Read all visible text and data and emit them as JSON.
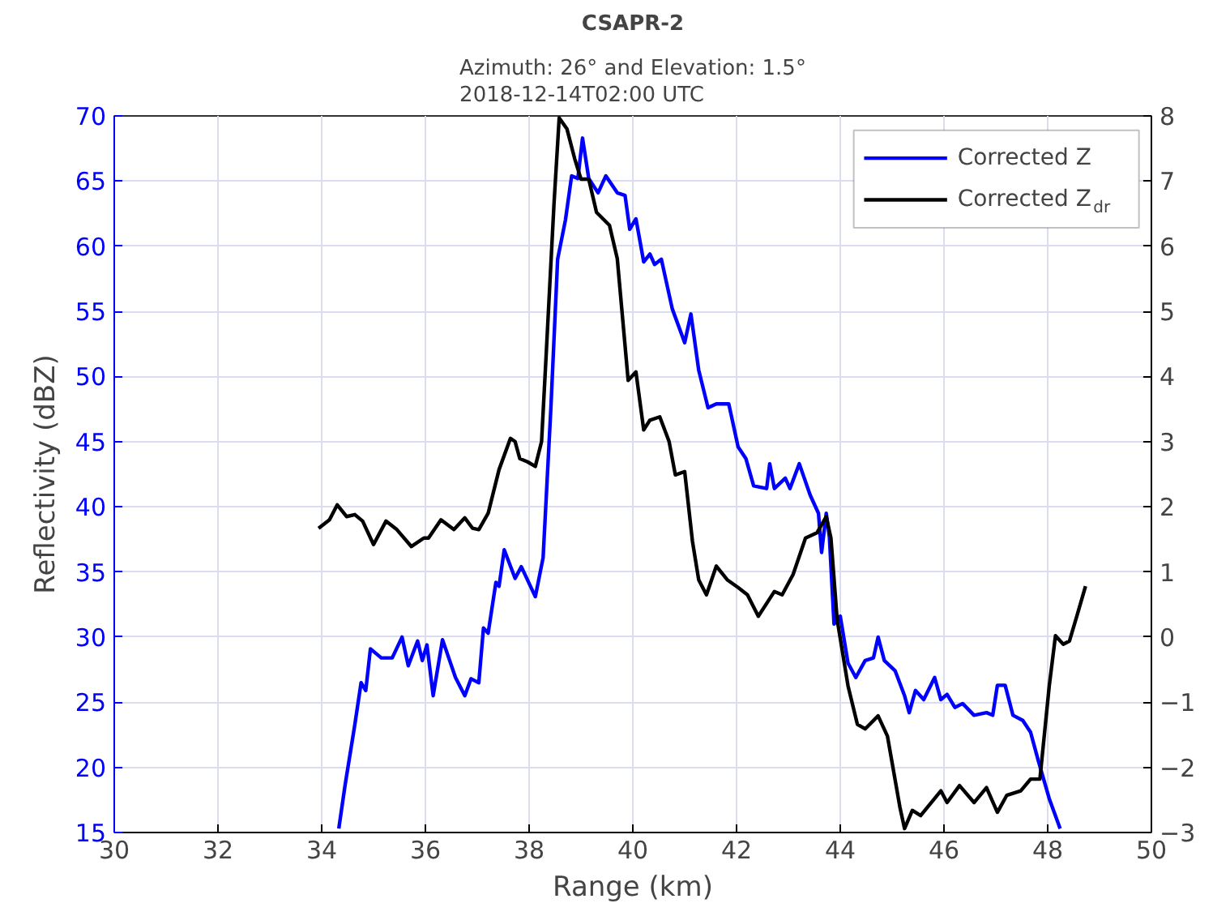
{
  "chart_data": {
    "type": "line",
    "title": "CSAPR-2",
    "subtitle": "Azimuth: 26° and Elevation: 1.5°\n2018-12-14T02:00 UTC",
    "xlabel": "Range (km)",
    "ylabel": "Reflectivity (dBZ)",
    "xlim": [
      30,
      50
    ],
    "xticks": [
      30,
      32,
      34,
      36,
      38,
      40,
      42,
      44,
      46,
      48,
      50
    ],
    "ylim": [
      15,
      70
    ],
    "yticks": [
      15,
      20,
      25,
      30,
      35,
      40,
      45,
      50,
      55,
      60,
      65,
      70
    ],
    "y2lim": [
      -3,
      8
    ],
    "y2ticks": [
      -3,
      -2,
      -1,
      0,
      1,
      2,
      3,
      4,
      5,
      6,
      7,
      8
    ],
    "grid": true,
    "legend": "top right",
    "line_style": "solid",
    "marker": "none",
    "series": [
      {
        "name": "Corrected Z",
        "color": "#0000ff",
        "x": [
          34.33,
          34.45,
          34.64,
          34.76,
          34.85,
          34.94,
          35.15,
          35.36,
          35.55,
          35.67,
          35.85,
          35.94,
          36.03,
          36.15,
          36.33,
          36.58,
          36.76,
          36.88,
          37.03,
          37.12,
          37.21,
          37.36,
          37.42,
          37.52,
          37.73,
          37.85,
          38.12,
          38.27,
          38.42,
          38.55,
          38.7,
          38.82,
          38.94,
          39.03,
          39.15,
          39.33,
          39.48,
          39.7,
          39.85,
          39.94,
          40.06,
          40.21,
          40.33,
          40.42,
          40.55,
          40.76,
          41.0,
          41.12,
          41.27,
          41.45,
          41.61,
          41.85,
          42.03,
          42.18,
          42.33,
          42.58,
          42.64,
          42.73,
          42.94,
          43.03,
          43.21,
          43.42,
          43.58,
          43.64,
          43.73,
          43.79,
          43.88,
          44.0,
          44.15,
          44.3,
          44.48,
          44.64,
          44.73,
          44.85,
          45.06,
          45.24,
          45.33,
          45.45,
          45.61,
          45.82,
          45.94,
          46.06,
          46.21,
          46.36,
          46.58,
          46.82,
          46.94,
          47.03,
          47.18,
          47.33,
          47.52,
          47.67,
          47.82,
          48.03,
          48.24
        ],
        "values": [
          15.3,
          18.6,
          23.3,
          26.5,
          25.9,
          29.1,
          28.4,
          28.4,
          30.0,
          27.8,
          29.7,
          28.2,
          29.4,
          25.5,
          29.8,
          26.9,
          25.5,
          26.8,
          26.5,
          30.7,
          30.3,
          34.2,
          33.9,
          36.7,
          34.5,
          35.4,
          33.1,
          36.1,
          47.6,
          59.0,
          62.0,
          65.4,
          65.2,
          68.3,
          65.2,
          64.1,
          65.4,
          64.1,
          63.9,
          61.3,
          62.1,
          58.8,
          59.4,
          58.6,
          59.0,
          55.2,
          52.6,
          54.8,
          50.5,
          47.6,
          47.9,
          47.9,
          44.6,
          43.7,
          41.6,
          41.4,
          43.3,
          41.4,
          42.2,
          41.4,
          43.3,
          40.9,
          39.5,
          36.5,
          39.5,
          37.7,
          31.0,
          31.6,
          28.0,
          26.9,
          28.2,
          28.4,
          30.0,
          28.2,
          27.4,
          25.5,
          24.2,
          25.9,
          25.2,
          26.9,
          25.2,
          25.6,
          24.6,
          24.9,
          24.0,
          24.2,
          24.0,
          26.3,
          26.3,
          24.0,
          23.6,
          22.7,
          20.5,
          17.6,
          15.3
        ]
      },
      {
        "name": "Corrected  Z$_{dr}$",
        "color": "#000000",
        "axis": "y2",
        "x": [
          33.94,
          34.15,
          34.3,
          34.48,
          34.64,
          34.79,
          35.0,
          35.24,
          35.45,
          35.73,
          35.97,
          36.06,
          36.3,
          36.55,
          36.76,
          36.91,
          37.03,
          37.21,
          37.42,
          37.64,
          37.73,
          37.82,
          37.97,
          38.12,
          38.24,
          38.33,
          38.48,
          38.58,
          38.73,
          38.88,
          39.0,
          39.15,
          39.3,
          39.55,
          39.7,
          39.91,
          40.06,
          40.21,
          40.33,
          40.52,
          40.7,
          40.82,
          41.0,
          41.15,
          41.27,
          41.42,
          41.61,
          41.82,
          42.03,
          42.21,
          42.42,
          42.73,
          42.88,
          43.09,
          43.33,
          43.55,
          43.73,
          43.82,
          43.94,
          44.15,
          44.33,
          44.48,
          44.73,
          44.91,
          45.15,
          45.24,
          45.39,
          45.55,
          45.94,
          46.06,
          46.3,
          46.58,
          46.82,
          47.03,
          47.21,
          47.48,
          47.67,
          47.85,
          48.03,
          48.15,
          48.3,
          48.42,
          48.58,
          48.73
        ],
        "values": [
          1.67,
          1.8,
          2.03,
          1.85,
          1.88,
          1.78,
          1.42,
          1.78,
          1.65,
          1.39,
          1.52,
          1.52,
          1.8,
          1.65,
          1.83,
          1.67,
          1.65,
          1.9,
          2.57,
          3.05,
          3.0,
          2.74,
          2.69,
          2.62,
          3.0,
          4.35,
          6.65,
          7.97,
          7.8,
          7.34,
          7.03,
          7.03,
          6.52,
          6.32,
          5.81,
          3.94,
          4.07,
          3.18,
          3.33,
          3.38,
          3.0,
          2.49,
          2.54,
          1.47,
          0.88,
          0.65,
          1.09,
          0.88,
          0.76,
          0.65,
          0.32,
          0.7,
          0.65,
          0.96,
          1.52,
          1.6,
          1.85,
          1.52,
          0.27,
          -0.75,
          -1.34,
          -1.41,
          -1.21,
          -1.52,
          -2.61,
          -2.94,
          -2.66,
          -2.74,
          -2.36,
          -2.54,
          -2.28,
          -2.54,
          -2.31,
          -2.69,
          -2.43,
          -2.36,
          -2.18,
          -2.18,
          -0.75,
          0.02,
          -0.11,
          -0.06,
          0.37,
          0.78
        ]
      }
    ]
  }
}
